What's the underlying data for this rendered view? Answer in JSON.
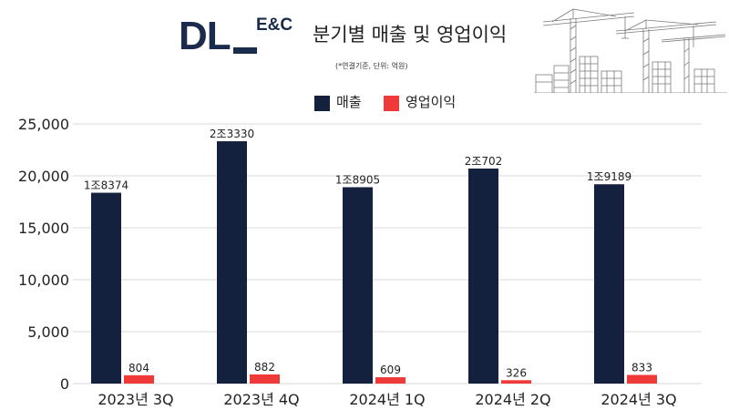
{
  "header": {
    "logo_text": "DL",
    "logo_suffix": "E&C",
    "title": "분기별 매출 및 영업이익",
    "subtitle": "(*연결기준, 단위: 억원)"
  },
  "colors": {
    "revenue": "#13213f",
    "operating_profit": "#f03a3a",
    "brand": "#1a2b4c",
    "gridline": "#d9d9d9"
  },
  "chart_data": {
    "type": "bar",
    "categories": [
      "2023년 3Q",
      "2023년 4Q",
      "2024년 1Q",
      "2024년 2Q",
      "2024년 3Q"
    ],
    "series": [
      {
        "name": "매출",
        "values": [
          18374,
          23330,
          18905,
          20702,
          19189
        ],
        "labels": [
          "1조8374",
          "2조3330",
          "1조8905",
          "2조702",
          "1조9189"
        ]
      },
      {
        "name": "영업이익",
        "values": [
          804,
          882,
          609,
          326,
          833
        ],
        "labels": [
          "804",
          "882",
          "609",
          "326",
          "833"
        ]
      }
    ],
    "ylim": [
      0,
      25000
    ],
    "yticks": [
      0,
      5000,
      10000,
      15000,
      20000,
      25000
    ],
    "ytick_labels": [
      "0",
      "5,000",
      "10,000",
      "15,000",
      "20,000",
      "25,000"
    ],
    "grid": true,
    "legend_position": "top-center"
  }
}
